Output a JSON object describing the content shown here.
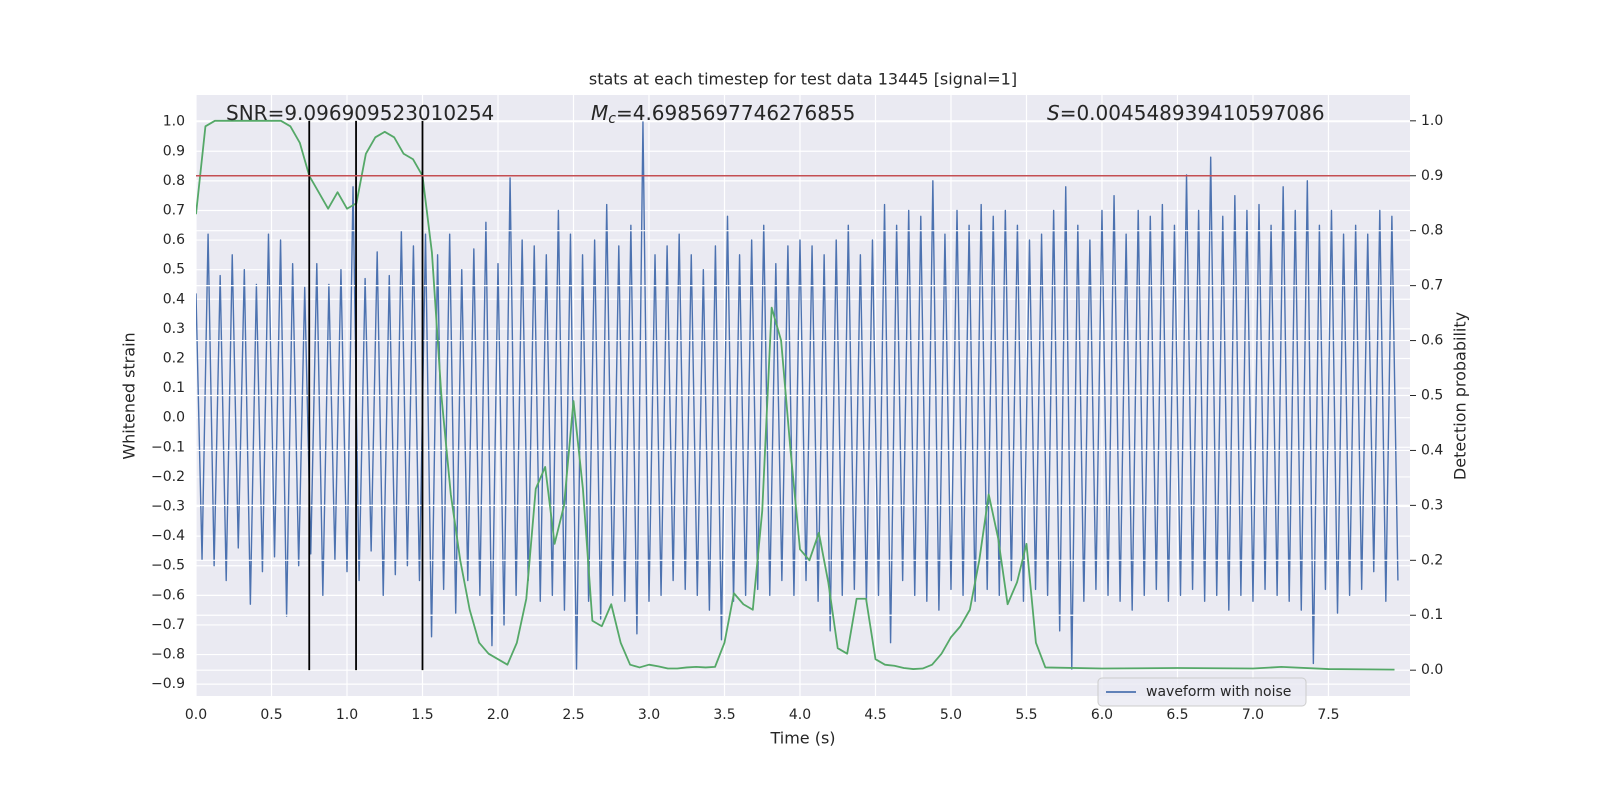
{
  "chart_data": {
    "type": "line",
    "title": "stats at each timestep for test data 13445 [signal=1]",
    "xlabel": "Time (s)",
    "ylabel": "Whitened strain",
    "y2label": "Detection probability",
    "annotations": [
      {
        "name": "SNR",
        "italic": false,
        "text": "=9.096909523010254"
      },
      {
        "name": "M",
        "sub": "c",
        "italic": true,
        "text": "=4.6985697746276855"
      },
      {
        "name": "S",
        "italic": true,
        "text": "=0.004548939410597086"
      }
    ],
    "xlim": [
      0,
      8.04
    ],
    "ylim": [
      -0.94,
      1.09
    ],
    "y2lim": [
      -0.047,
      1.047
    ],
    "xticks": [
      {
        "value": 0,
        "label": "0.0"
      },
      {
        "value": 0.5,
        "label": "0.5"
      },
      {
        "value": 1,
        "label": "1.0"
      },
      {
        "value": 1.5,
        "label": "1.5"
      },
      {
        "value": 2,
        "label": "2.0"
      },
      {
        "value": 2.5,
        "label": "2.5"
      },
      {
        "value": 3,
        "label": "3.0"
      },
      {
        "value": 3.5,
        "label": "3.5"
      },
      {
        "value": 4,
        "label": "4.0"
      },
      {
        "value": 4.5,
        "label": "4.5"
      },
      {
        "value": 5,
        "label": "5.0"
      },
      {
        "value": 5.5,
        "label": "5.5"
      },
      {
        "value": 6,
        "label": "6.0"
      },
      {
        "value": 6.5,
        "label": "6.5"
      },
      {
        "value": 7,
        "label": "7.0"
      },
      {
        "value": 7.5,
        "label": "7.5"
      }
    ],
    "yticks": [
      {
        "value": -0.9,
        "label": "−0.9"
      },
      {
        "value": -0.8,
        "label": "−0.8"
      },
      {
        "value": -0.7,
        "label": "−0.7"
      },
      {
        "value": -0.6,
        "label": "−0.6"
      },
      {
        "value": -0.5,
        "label": "−0.5"
      },
      {
        "value": -0.4,
        "label": "−0.4"
      },
      {
        "value": -0.3,
        "label": "−0.3"
      },
      {
        "value": -0.2,
        "label": "−0.2"
      },
      {
        "value": -0.1,
        "label": "−0.1"
      },
      {
        "value": 0,
        "label": "0.0"
      },
      {
        "value": 0.1,
        "label": "0.1"
      },
      {
        "value": 0.2,
        "label": "0.2"
      },
      {
        "value": 0.3,
        "label": "0.3"
      },
      {
        "value": 0.4,
        "label": "0.4"
      },
      {
        "value": 0.5,
        "label": "0.5"
      },
      {
        "value": 0.6,
        "label": "0.6"
      },
      {
        "value": 0.7,
        "label": "0.7"
      },
      {
        "value": 0.8,
        "label": "0.8"
      },
      {
        "value": 0.9,
        "label": "0.9"
      },
      {
        "value": 1,
        "label": "1.0"
      }
    ],
    "y2ticks": [
      {
        "value": 0,
        "label": "0.0"
      },
      {
        "value": 0.1,
        "label": "0.1"
      },
      {
        "value": 0.2,
        "label": "0.2"
      },
      {
        "value": 0.3,
        "label": "0.3"
      },
      {
        "value": 0.4,
        "label": "0.4"
      },
      {
        "value": 0.5,
        "label": "0.5"
      },
      {
        "value": 0.6,
        "label": "0.6"
      },
      {
        "value": 0.7,
        "label": "0.7"
      },
      {
        "value": 0.8,
        "label": "0.8"
      },
      {
        "value": 0.9,
        "label": "0.9"
      },
      {
        "value": 1,
        "label": "1.0"
      }
    ],
    "grid": true,
    "legend_loc": "best",
    "series": [
      {
        "name": "waveform with noise",
        "color": "#4c72b0",
        "x": [
          0,
          0.04,
          0.08,
          0.12,
          0.16,
          0.2,
          0.24,
          0.28,
          0.32,
          0.36,
          0.4,
          0.44,
          0.48,
          0.52,
          0.56,
          0.6,
          0.64,
          0.68,
          0.72,
          0.76,
          0.8,
          0.84,
          0.88,
          0.92,
          0.96,
          1,
          1.04,
          1.08,
          1.12,
          1.16,
          1.2,
          1.24,
          1.28,
          1.32,
          1.36,
          1.4,
          1.44,
          1.48,
          1.52,
          1.56,
          1.6,
          1.64,
          1.68,
          1.72,
          1.76,
          1.8,
          1.84,
          1.88,
          1.92,
          1.96,
          2,
          2.04,
          2.08,
          2.12,
          2.16,
          2.2,
          2.24,
          2.28,
          2.32,
          2.36,
          2.4,
          2.44,
          2.48,
          2.52,
          2.56,
          2.6,
          2.64,
          2.68,
          2.72,
          2.76,
          2.8,
          2.84,
          2.88,
          2.92,
          2.96,
          3,
          3.04,
          3.08,
          3.12,
          3.16,
          3.2,
          3.24,
          3.28,
          3.32,
          3.36,
          3.4,
          3.44,
          3.48,
          3.52,
          3.56,
          3.6,
          3.64,
          3.68,
          3.72,
          3.76,
          3.8,
          3.84,
          3.88,
          3.92,
          3.96,
          4,
          4.04,
          4.08,
          4.12,
          4.16,
          4.2,
          4.24,
          4.28,
          4.32,
          4.36,
          4.4,
          4.44,
          4.48,
          4.52,
          4.56,
          4.6,
          4.64,
          4.68,
          4.72,
          4.76,
          4.8,
          4.84,
          4.88,
          4.92,
          4.96,
          5,
          5.04,
          5.08,
          5.12,
          5.16,
          5.2,
          5.24,
          5.28,
          5.32,
          5.36,
          5.4,
          5.44,
          5.48,
          5.52,
          5.56,
          5.6,
          5.64,
          5.68,
          5.72,
          5.76,
          5.8,
          5.84,
          5.88,
          5.92,
          5.96,
          6,
          6.04,
          6.08,
          6.12,
          6.16,
          6.2,
          6.24,
          6.28,
          6.32,
          6.36,
          6.4,
          6.44,
          6.48,
          6.52,
          6.56,
          6.6,
          6.64,
          6.68,
          6.72,
          6.76,
          6.8,
          6.84,
          6.88,
          6.92,
          6.96,
          7,
          7.04,
          7.08,
          7.12,
          7.16,
          7.2,
          7.24,
          7.28,
          7.32,
          7.36,
          7.4,
          7.44,
          7.48,
          7.52,
          7.56,
          7.6,
          7.64,
          7.68,
          7.72,
          7.76,
          7.8,
          7.84,
          7.88,
          7.92,
          7.96
        ],
        "values": [
          0.42,
          -0.48,
          0.62,
          -0.5,
          0.48,
          -0.55,
          0.55,
          -0.44,
          0.5,
          -0.63,
          0.45,
          -0.52,
          0.62,
          -0.47,
          0.6,
          -0.67,
          0.52,
          -0.5,
          0.44,
          -0.46,
          0.52,
          -0.6,
          0.45,
          -0.48,
          0.5,
          -0.52,
          0.78,
          -0.55,
          0.47,
          -0.45,
          0.56,
          -0.6,
          0.48,
          -0.53,
          0.63,
          -0.5,
          0.58,
          -0.55,
          0.62,
          -0.74,
          0.55,
          -0.58,
          0.62,
          -0.66,
          0.5,
          -0.55,
          0.57,
          -0.6,
          0.66,
          -0.77,
          0.52,
          -0.7,
          0.81,
          -0.6,
          0.6,
          -0.55,
          0.58,
          -0.62,
          0.55,
          -0.6,
          0.7,
          -0.65,
          0.62,
          -0.85,
          0.55,
          -0.62,
          0.6,
          -0.68,
          0.72,
          -0.6,
          0.58,
          -0.62,
          0.65,
          -0.73,
          1.0,
          -0.62,
          0.55,
          -0.6,
          0.58,
          -0.55,
          0.62,
          -0.58,
          0.55,
          -0.6,
          0.5,
          -0.65,
          0.58,
          -0.75,
          0.68,
          -0.62,
          0.55,
          -0.6,
          0.6,
          -0.58,
          0.65,
          -0.6,
          0.52,
          -0.55,
          0.58,
          -0.6,
          0.6,
          -0.55,
          0.58,
          -0.62,
          0.55,
          -0.72,
          0.6,
          -0.6,
          0.65,
          -0.58,
          0.55,
          -0.62,
          0.6,
          -0.6,
          0.72,
          -0.76,
          0.65,
          -0.55,
          0.7,
          -0.6,
          0.68,
          -0.62,
          0.8,
          -0.65,
          0.62,
          -0.58,
          0.7,
          -0.6,
          0.65,
          -0.62,
          0.72,
          -0.58,
          0.68,
          -0.6,
          0.7,
          -0.55,
          0.65,
          -0.62,
          0.6,
          -0.58,
          0.62,
          -0.6,
          0.7,
          -0.72,
          0.78,
          -0.85,
          0.65,
          -0.62,
          0.6,
          -0.58,
          0.7,
          -0.6,
          0.75,
          -0.62,
          0.62,
          -0.65,
          0.7,
          -0.6,
          0.68,
          -0.58,
          0.72,
          -0.62,
          0.65,
          -0.6,
          0.82,
          -0.58,
          0.7,
          -0.62,
          0.88,
          -0.6,
          0.68,
          -0.65,
          0.75,
          -0.6,
          0.7,
          -0.62,
          0.72,
          -0.58,
          0.65,
          -0.6,
          0.78,
          -0.62,
          0.7,
          -0.65,
          0.8,
          -0.83,
          0.65,
          -0.58,
          0.7,
          -0.66,
          0.62,
          -0.6,
          0.65,
          -0.58,
          0.62,
          -0.52,
          0.7,
          -0.62,
          0.68,
          -0.55
        ]
      },
      {
        "axis": "y2",
        "color": "#55a868",
        "x": [
          0,
          0.0625,
          0.125,
          0.1875,
          0.25,
          0.3125,
          0.375,
          0.4375,
          0.5,
          0.5625,
          0.625,
          0.6875,
          0.75,
          0.8125,
          0.875,
          0.9375,
          1,
          1.0625,
          1.125,
          1.1875,
          1.25,
          1.3125,
          1.375,
          1.4375,
          1.5,
          1.5625,
          1.625,
          1.6875,
          1.75,
          1.8125,
          1.875,
          1.9375,
          2,
          2.0625,
          2.125,
          2.1875,
          2.25,
          2.3125,
          2.375,
          2.4375,
          2.5,
          2.5625,
          2.625,
          2.6875,
          2.75,
          2.8125,
          2.875,
          2.9375,
          3,
          3.0625,
          3.125,
          3.1875,
          3.25,
          3.3125,
          3.375,
          3.4375,
          3.5,
          3.5625,
          3.625,
          3.6875,
          3.75,
          3.8125,
          3.875,
          3.9375,
          4,
          4.0625,
          4.125,
          4.1875,
          4.25,
          4.3125,
          4.375,
          4.4375,
          4.5,
          4.5625,
          4.625,
          4.6875,
          4.75,
          4.8125,
          4.875,
          4.9375,
          5,
          5.0625,
          5.125,
          5.1875,
          5.25,
          5.3125,
          5.375,
          5.4375,
          5.5,
          5.5625,
          5.625,
          6,
          6.5,
          7,
          7.1875,
          7.5,
          7.9375
        ],
        "values": [
          0.83,
          0.99,
          1.0,
          1.0,
          1.0,
          1.0,
          1.0,
          1.0,
          1.0,
          1.0,
          0.99,
          0.96,
          0.9,
          0.87,
          0.84,
          0.87,
          0.84,
          0.85,
          0.94,
          0.97,
          0.98,
          0.97,
          0.94,
          0.93,
          0.9,
          0.76,
          0.5,
          0.32,
          0.2,
          0.11,
          0.05,
          0.03,
          0.02,
          0.01,
          0.05,
          0.13,
          0.33,
          0.37,
          0.23,
          0.3,
          0.49,
          0.33,
          0.09,
          0.08,
          0.12,
          0.05,
          0.01,
          0.005,
          0.01,
          0.007,
          0.003,
          0.003,
          0.005,
          0.006,
          0.005,
          0.006,
          0.05,
          0.14,
          0.12,
          0.11,
          0.29,
          0.66,
          0.6,
          0.4,
          0.22,
          0.2,
          0.25,
          0.16,
          0.04,
          0.03,
          0.13,
          0.13,
          0.02,
          0.01,
          0.008,
          0.004,
          0.002,
          0.003,
          0.01,
          0.03,
          0.06,
          0.08,
          0.11,
          0.2,
          0.32,
          0.24,
          0.12,
          0.16,
          0.23,
          0.05,
          0.005,
          0.003,
          0.004,
          0.003,
          0.006,
          0.002,
          0.001
        ]
      }
    ],
    "vlines": [
      0.75,
      1.06,
      1.5
    ],
    "vline_range": [
      0,
      1
    ],
    "vline_color": "#000000",
    "hline": 0.9,
    "hline_color": "#c44e52"
  }
}
